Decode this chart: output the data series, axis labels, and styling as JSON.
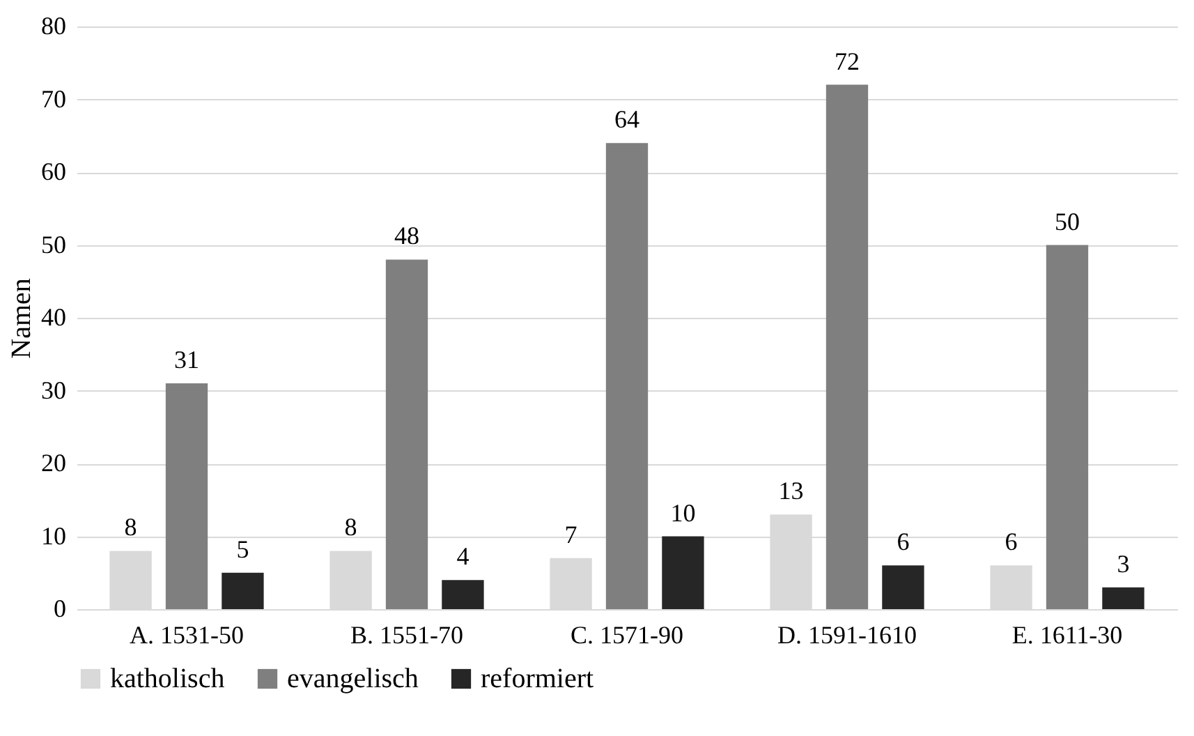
{
  "chart_data": {
    "type": "bar",
    "ylabel": "Namen",
    "categories": [
      "A. 1531-50",
      "B. 1551-70",
      "C. 1571-90",
      "D. 1591-1610",
      "E. 1611-30"
    ],
    "series": [
      {
        "name": "katholisch",
        "color": "#d9d9d9",
        "values": [
          8,
          8,
          7,
          13,
          6
        ]
      },
      {
        "name": "evangelisch",
        "color": "#7f7f7f",
        "values": [
          31,
          48,
          64,
          72,
          50
        ]
      },
      {
        "name": "reformiert",
        "color": "#262626",
        "values": [
          5,
          4,
          10,
          6,
          3
        ]
      }
    ],
    "ylim": [
      0,
      80
    ],
    "yticks": [
      0,
      10,
      20,
      30,
      40,
      50,
      60,
      70,
      80
    ],
    "grid": "y",
    "legend": "bottom",
    "data_labels": true
  }
}
